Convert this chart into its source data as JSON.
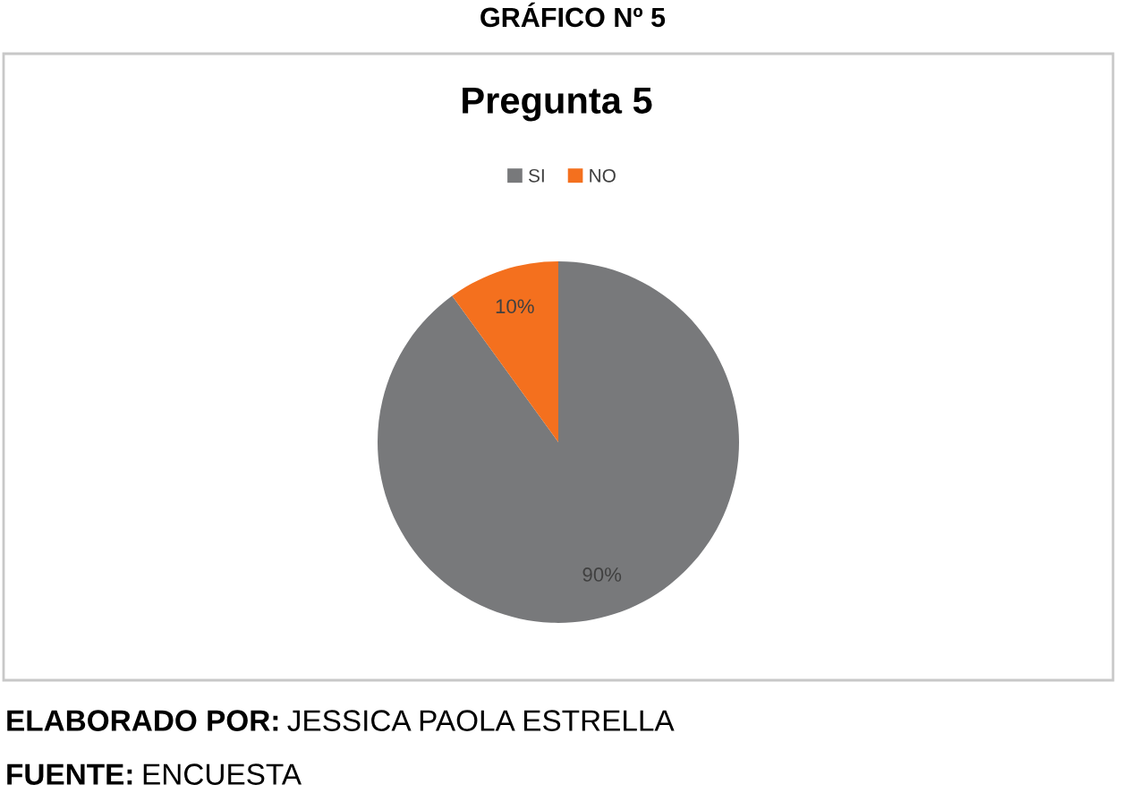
{
  "chart_data": {
    "type": "pie",
    "title": "Pregunta 5",
    "categories": [
      "SI",
      "NO"
    ],
    "values": [
      90,
      10
    ],
    "colors": [
      "#78797b",
      "#f4701e"
    ],
    "value_labels": [
      "90%",
      "10%"
    ],
    "legend": "top",
    "annotations": [
      "GRÁFICO Nº 5",
      "ELABORADO POR: JESSICA PAOLA ESTRELLA",
      "FUENTE: ENCUESTA"
    ]
  }
}
